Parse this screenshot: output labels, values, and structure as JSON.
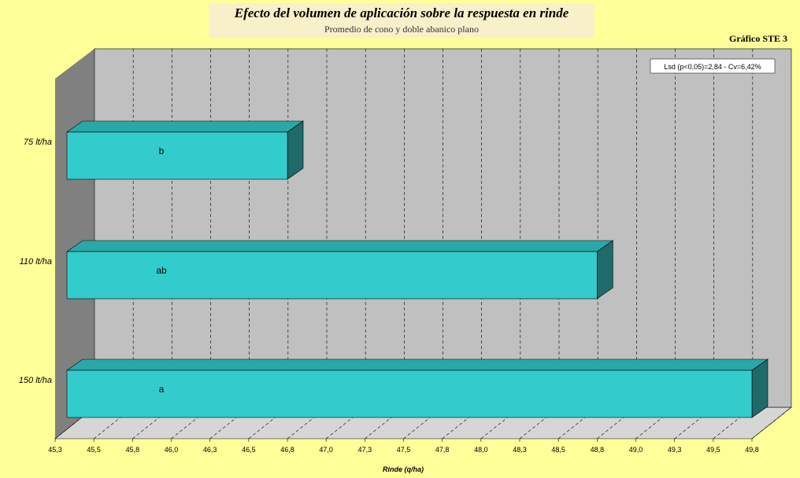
{
  "chart_data": {
    "type": "bar",
    "orientation": "horizontal",
    "title": "Efecto del volumen de aplicación sobre la respuesta en rinde",
    "subtitle": "Promedio de cono y doble abanico plano",
    "code": "Gráfico STE 3",
    "xlabel": "Rinde (q/ha)",
    "xlim": [
      45.3,
      49.8
    ],
    "xticks": [
      "45,3",
      "45,5",
      "45,8",
      "46,0",
      "46,3",
      "46,5",
      "46,8",
      "47,0",
      "47,3",
      "47,5",
      "47,8",
      "48,0",
      "48,3",
      "48,5",
      "48,8",
      "49,0",
      "49,3",
      "49,5",
      "49,8"
    ],
    "categories": [
      "75 lt/ha",
      "110 lt/ha",
      "150 lt/ha"
    ],
    "values": [
      46.8,
      48.8,
      49.8
    ],
    "bar_labels": [
      "b",
      "ab",
      "a"
    ],
    "annotation": "Lsd (p<0,05)=2,84 - Cv=6,42%",
    "colors": {
      "bar_front": "#33cccc",
      "bar_top": "#2aa8a8",
      "bar_side": "#1f6a6a",
      "plot_back": "#c0c0c0",
      "floor": "#d6d6d6",
      "left_wall": "#808080",
      "background": "#ffff99"
    },
    "grid": true
  }
}
